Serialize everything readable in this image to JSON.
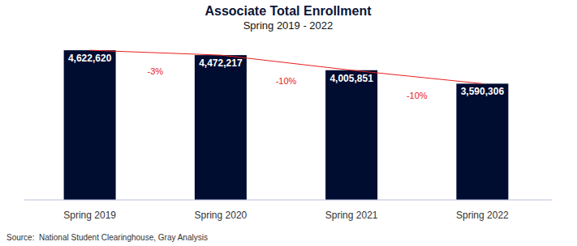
{
  "chart_data": {
    "type": "bar",
    "title": "Associate Total Enrollment",
    "subtitle": "Spring 2019 - 2022",
    "categories": [
      "Spring 2019",
      "Spring 2020",
      "Spring 2021",
      "Spring 2022"
    ],
    "values": [
      4622620,
      4472217,
      4005851,
      3590306
    ],
    "value_labels": [
      "4,622,620",
      "4,472,217",
      "4,005,851",
      "3,590,306"
    ],
    "annotations": [
      "-3%",
      "-10%",
      "-10%"
    ],
    "source": "Source:  National Student Clearinghouse, Gray Analysis",
    "color": "#000c30",
    "ylim": [
      0,
      5000000
    ],
    "data_labels": true,
    "tick_labels": "x",
    "grid": false
  }
}
